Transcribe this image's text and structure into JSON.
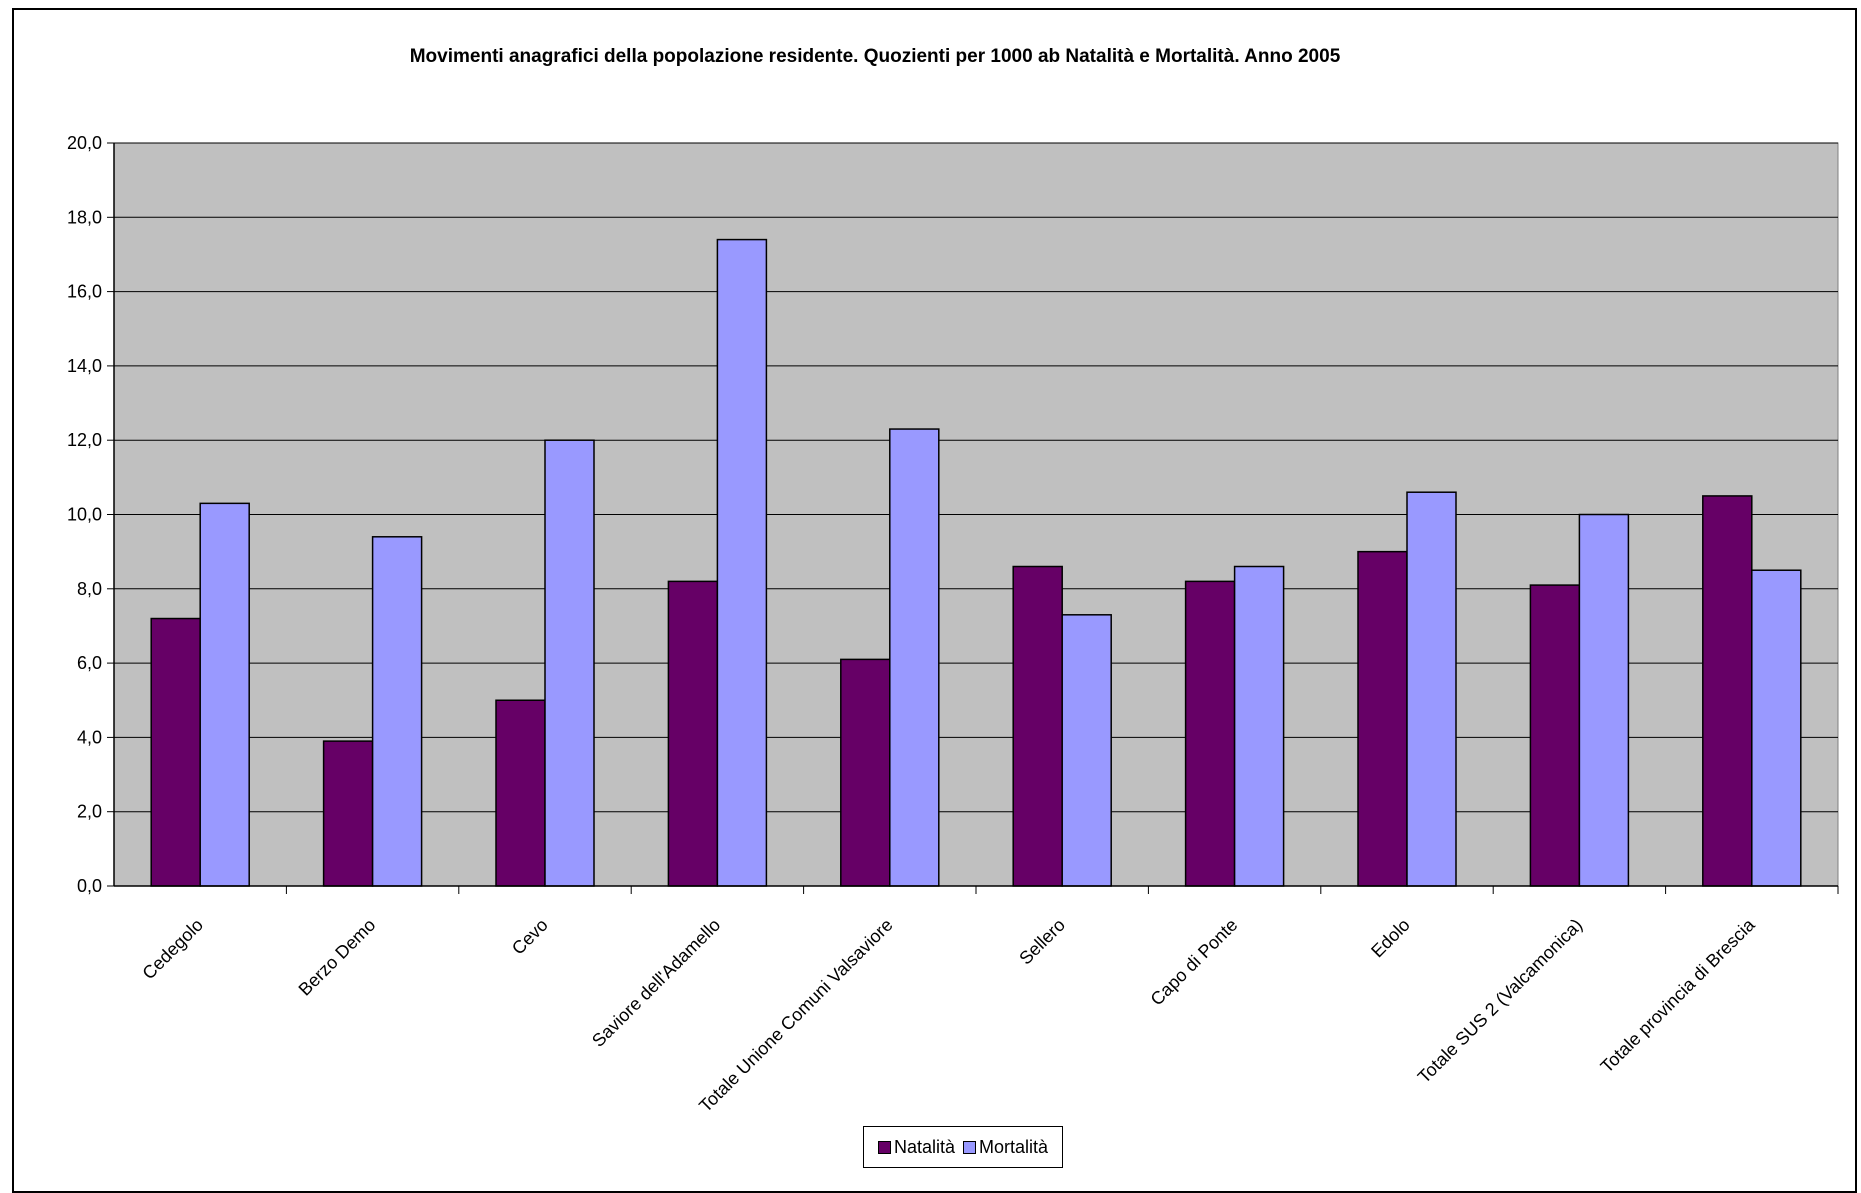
{
  "chart_data": {
    "type": "bar",
    "title": "Movimenti anagrafici della popolazione residente. Quozienti per 1000 ab Natalità e Mortalità. Anno 2005",
    "categories": [
      "Cedegolo",
      "Berzo Demo",
      "Cevo",
      "Saviore dell'Adamello",
      "Totale Unione Comuni Valsaviore",
      "Sellero",
      "Capo di Ponte",
      "Edolo",
      "Totale SUS 2 (Valcamonica)",
      "Totale provincia di Brescia"
    ],
    "series": [
      {
        "name": "Natalità",
        "color": "#660066",
        "values": [
          7.2,
          3.9,
          5.0,
          8.2,
          6.1,
          8.6,
          8.2,
          9.0,
          8.1,
          10.5
        ]
      },
      {
        "name": "Mortalità",
        "color": "#9999ff",
        "values": [
          10.3,
          9.4,
          12.0,
          17.4,
          12.3,
          7.3,
          8.6,
          10.6,
          10.0,
          8.5
        ]
      }
    ],
    "ylim": [
      0,
      20
    ],
    "yticks": [
      "0,0",
      "2,0",
      "4,0",
      "6,0",
      "8,0",
      "10,0",
      "12,0",
      "14,0",
      "16,0",
      "18,0",
      "20,0"
    ],
    "grid": true,
    "plot_background": "#c0c0c0",
    "legend_position": "bottom"
  }
}
